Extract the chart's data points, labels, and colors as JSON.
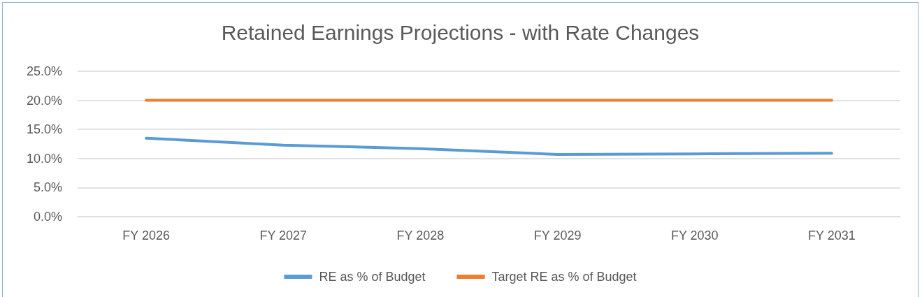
{
  "chart_data": {
    "type": "line",
    "title": "Retained Earnings Projections - with Rate Changes",
    "categories": [
      "FY 2026",
      "FY 2027",
      "FY 2028",
      "FY 2029",
      "FY 2030",
      "FY 2031"
    ],
    "series": [
      {
        "name": "RE as % of Budget",
        "color": "#5b9bd5",
        "values": [
          13.5,
          12.3,
          11.7,
          10.7,
          10.8,
          10.9
        ]
      },
      {
        "name": "Target RE as % of Budget",
        "color": "#ed7d31",
        "values": [
          20,
          20,
          20,
          20,
          20,
          20
        ]
      }
    ],
    "ylim": [
      0,
      25
    ],
    "yticks": [
      {
        "value": 0,
        "label": "0.0%"
      },
      {
        "value": 5,
        "label": "5.0%"
      },
      {
        "value": 10,
        "label": "10.0%"
      },
      {
        "value": 15,
        "label": "15.0%"
      },
      {
        "value": 20,
        "label": "20.0%"
      },
      {
        "value": 25,
        "label": "25.0%"
      }
    ],
    "grid": "y",
    "legend": "bottom",
    "marker": "none",
    "line_style": "solid"
  }
}
